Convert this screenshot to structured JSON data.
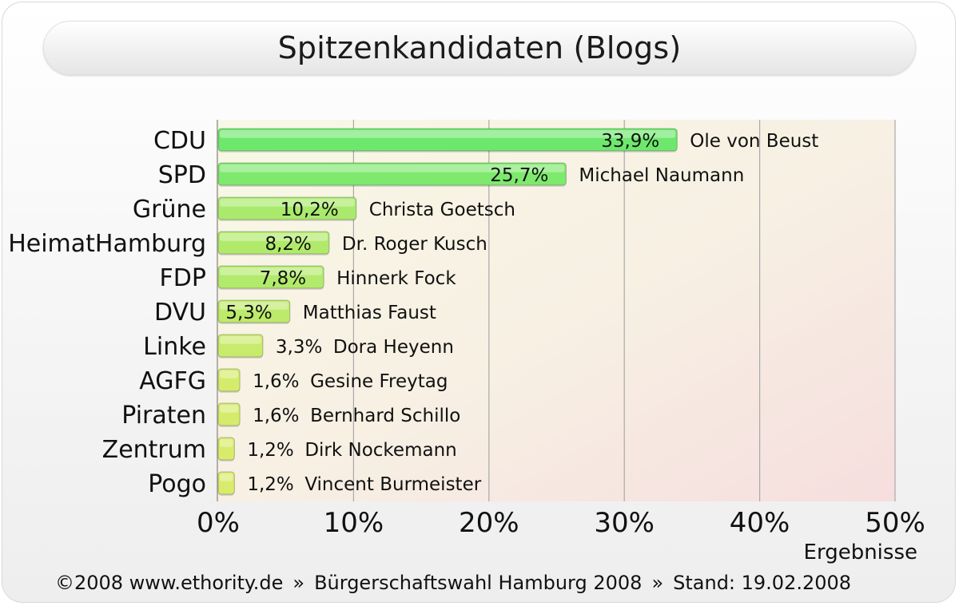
{
  "chart_data": {
    "type": "bar",
    "orientation": "horizontal",
    "title": "Spitzenkandidaten (Blogs)",
    "xlabel": "Ergebnisse",
    "xlim": [
      0,
      50
    ],
    "x_ticks": [
      "0%",
      "10%",
      "20%",
      "30%",
      "40%",
      "50%"
    ],
    "x_tick_values": [
      0,
      10,
      20,
      30,
      40,
      50
    ],
    "grid": true,
    "categories": [
      "CDU",
      "SPD",
      "Grüne",
      "HeimatHamburg",
      "FDP",
      "DVU",
      "Linke",
      "AGFG",
      "Piraten",
      "Zentrum",
      "Pogo"
    ],
    "values": [
      33.9,
      25.7,
      10.2,
      8.2,
      7.8,
      5.3,
      3.3,
      1.6,
      1.6,
      1.2,
      1.2
    ],
    "value_labels": [
      "33,9%",
      "25,7%",
      "10,2%",
      "8,2%",
      "7,8%",
      "5,3%",
      "3,3%",
      "1,6%",
      "1,6%",
      "1,2%",
      "1,2%"
    ],
    "candidates": [
      "Ole von Beust",
      "Michael Naumann",
      "Christa Goetsch",
      "Dr. Roger Kusch",
      "Hinnerk Fock",
      "Matthias Faust",
      "Dora Heyenn",
      "Gesine Freytag",
      "Bernhard Schillo",
      "Dirk Nockemann",
      "Vincent Burmeister"
    ]
  },
  "footer": {
    "copyright": "©2008 www.ethority.de",
    "separator": "»",
    "election": "Bürgerschaftswahl Hamburg 2008",
    "stand": "Stand: 19.02.2008"
  },
  "colors": {
    "bar_high": "#6de86d",
    "bar_low": "#f2ec6a",
    "plot_top": "#f7f7e4",
    "plot_bottom": "#f7dfdf",
    "grid": "#a9a9a9"
  }
}
